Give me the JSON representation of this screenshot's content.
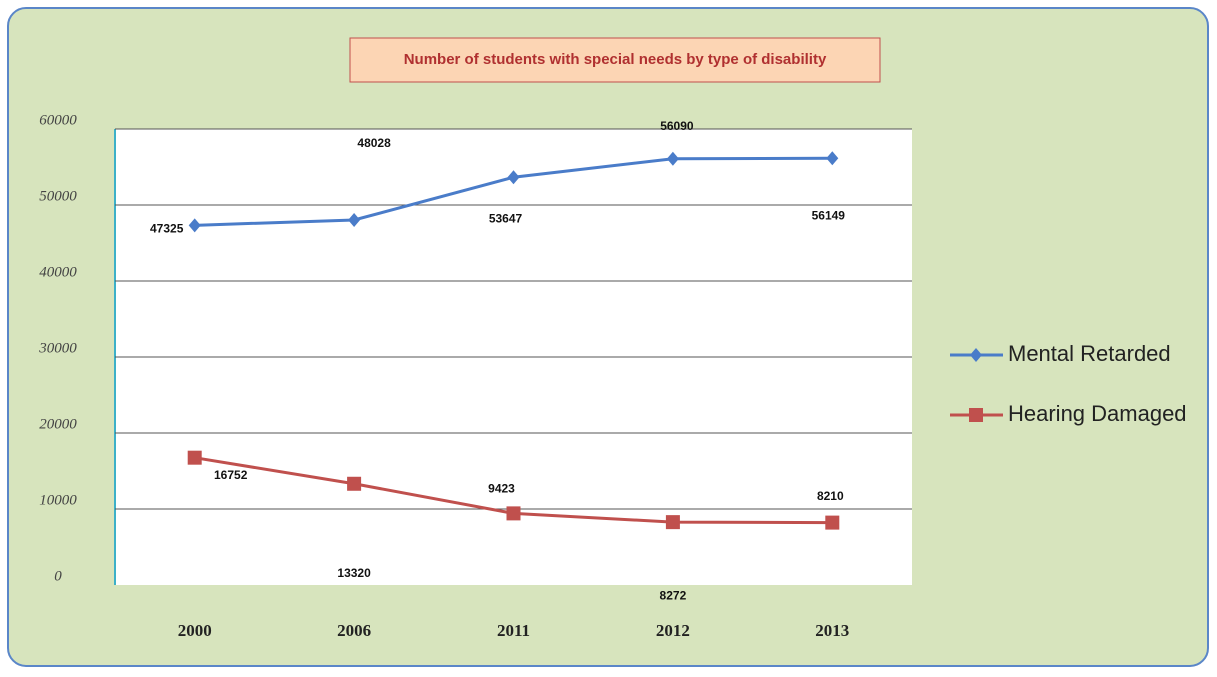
{
  "chart_data": {
    "type": "line",
    "title": "Number of students with special needs by type of disability",
    "categories": [
      "2000",
      "2006",
      "2011",
      "2012",
      "2013"
    ],
    "series": [
      {
        "name": "Mental Retarded",
        "color": "#4a7cc9",
        "marker": "diamond",
        "values": [
          47325,
          48028,
          53647,
          56090,
          56149
        ]
      },
      {
        "name": "Hearing Damaged",
        "color": "#c0504d",
        "marker": "square",
        "values": [
          16752,
          13320,
          9423,
          8272,
          8210
        ]
      }
    ],
    "ylim": [
      0,
      60000
    ],
    "yticks": [
      0,
      10000,
      20000,
      30000,
      40000,
      50000,
      60000
    ],
    "grid": true,
    "legend": "right"
  }
}
